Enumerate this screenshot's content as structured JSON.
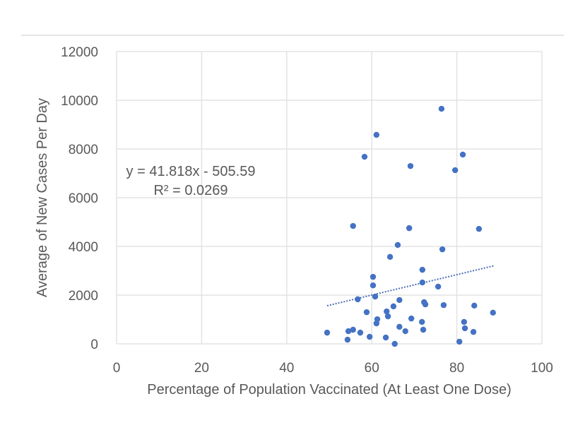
{
  "chart_data": {
    "type": "scatter",
    "title": "",
    "xlabel": "Percentage of Population Vaccinated (At Least One Dose)",
    "ylabel": "Average of New Cases Per Day",
    "xlim": [
      0,
      100
    ],
    "ylim": [
      0,
      12000
    ],
    "x_ticks": [
      "0",
      "20",
      "40",
      "60",
      "80",
      "100"
    ],
    "y_ticks": [
      "0",
      "2000",
      "4000",
      "6000",
      "8000",
      "10000",
      "12000"
    ],
    "grid": true,
    "legend": "none",
    "marker_color": "#4472c4",
    "trendline": {
      "type": "linear",
      "slope": 41.818,
      "intercept": -505.59,
      "x_range": [
        49.5,
        88.6
      ],
      "style": "dotted",
      "equation_label": "y = 41.818x - 505.59",
      "r2_label": "R² = 0.0269"
    },
    "points": [
      {
        "x": 76.4,
        "y": 9650
      },
      {
        "x": 61.1,
        "y": 8580
      },
      {
        "x": 58.3,
        "y": 7680
      },
      {
        "x": 69.1,
        "y": 7300
      },
      {
        "x": 81.4,
        "y": 7770
      },
      {
        "x": 79.6,
        "y": 7130
      },
      {
        "x": 55.6,
        "y": 4840
      },
      {
        "x": 68.8,
        "y": 4750
      },
      {
        "x": 85.2,
        "y": 4720
      },
      {
        "x": 66.1,
        "y": 4060
      },
      {
        "x": 64.3,
        "y": 3570
      },
      {
        "x": 76.6,
        "y": 3880
      },
      {
        "x": 60.3,
        "y": 2750
      },
      {
        "x": 60.3,
        "y": 2400
      },
      {
        "x": 71.9,
        "y": 3040
      },
      {
        "x": 71.9,
        "y": 2520
      },
      {
        "x": 75.6,
        "y": 2350
      },
      {
        "x": 56.7,
        "y": 1830
      },
      {
        "x": 60.8,
        "y": 1940
      },
      {
        "x": 66.5,
        "y": 1800
      },
      {
        "x": 65.1,
        "y": 1540
      },
      {
        "x": 58.8,
        "y": 1300
      },
      {
        "x": 63.5,
        "y": 1330
      },
      {
        "x": 63.8,
        "y": 1130
      },
      {
        "x": 61.3,
        "y": 1010
      },
      {
        "x": 61.1,
        "y": 840
      },
      {
        "x": 69.3,
        "y": 1040
      },
      {
        "x": 72.3,
        "y": 1710
      },
      {
        "x": 72.6,
        "y": 1620
      },
      {
        "x": 76.9,
        "y": 1590
      },
      {
        "x": 71.8,
        "y": 900
      },
      {
        "x": 66.5,
        "y": 700
      },
      {
        "x": 67.9,
        "y": 520
      },
      {
        "x": 72.1,
        "y": 580
      },
      {
        "x": 49.5,
        "y": 460
      },
      {
        "x": 54.5,
        "y": 520
      },
      {
        "x": 55.6,
        "y": 580
      },
      {
        "x": 57.3,
        "y": 460
      },
      {
        "x": 54.3,
        "y": 170
      },
      {
        "x": 59.5,
        "y": 290
      },
      {
        "x": 63.3,
        "y": 260
      },
      {
        "x": 65.4,
        "y": 0
      },
      {
        "x": 80.6,
        "y": 90
      },
      {
        "x": 81.7,
        "y": 900
      },
      {
        "x": 81.9,
        "y": 640
      },
      {
        "x": 83.9,
        "y": 490
      },
      {
        "x": 84.1,
        "y": 1570
      },
      {
        "x": 88.5,
        "y": 1280
      }
    ]
  }
}
